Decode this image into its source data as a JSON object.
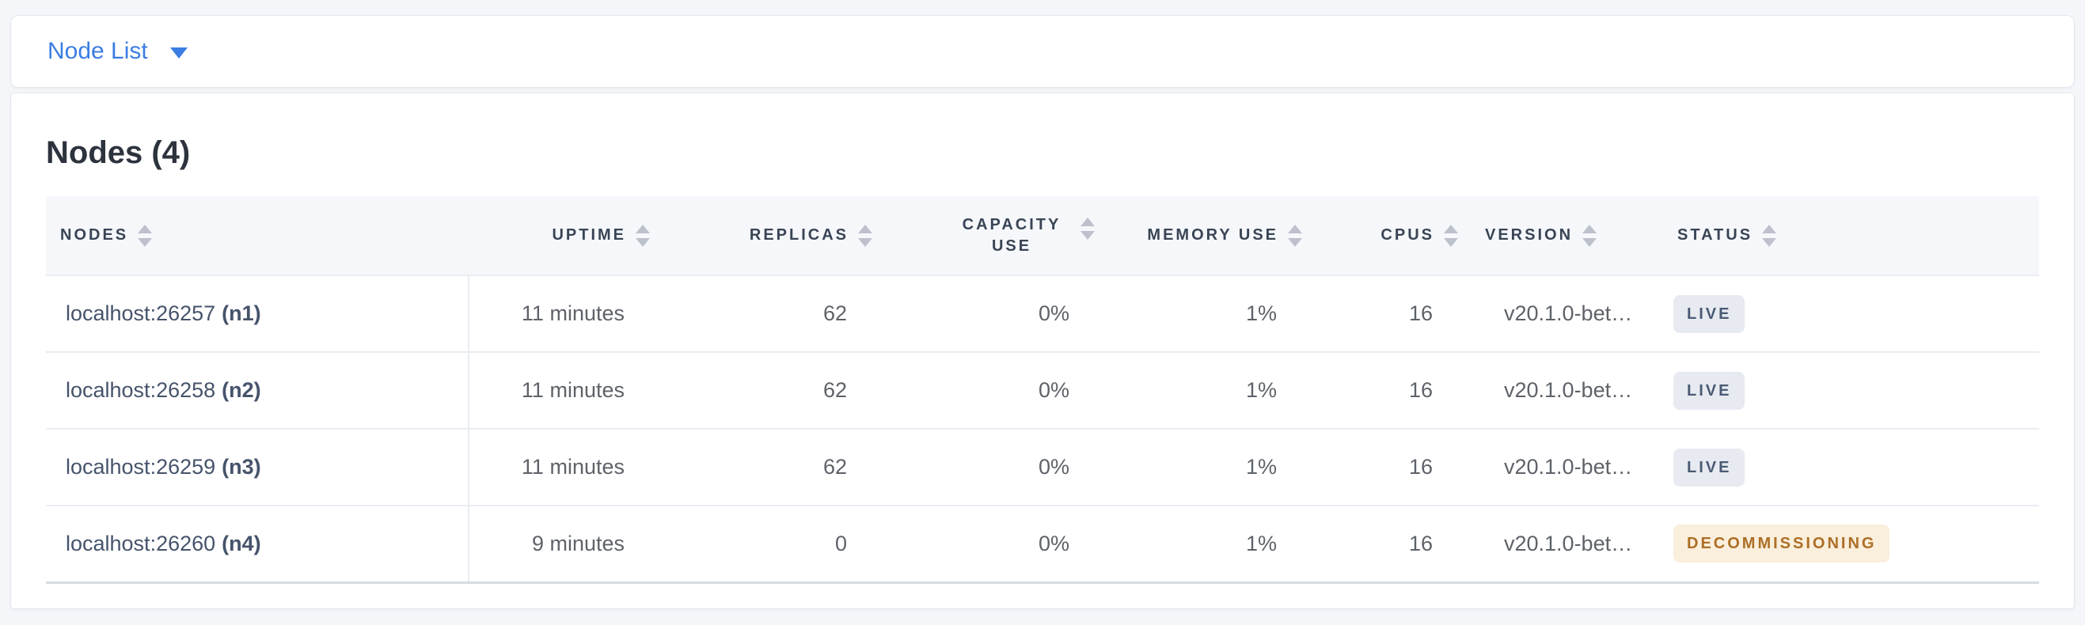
{
  "topbar": {
    "dropdown_label": "Node List"
  },
  "main": {
    "title": "Nodes (4)",
    "table": {
      "headers": {
        "nodes": "NODES",
        "uptime": "UPTIME",
        "replicas": "REPLICAS",
        "capacity_use": "CAPACITY USE",
        "memory_use": "MEMORY USE",
        "cpus": "CPUS",
        "version": "VERSION",
        "status": "STATUS"
      },
      "rows": [
        {
          "address": "localhost:26257",
          "id": "(n1)",
          "uptime": "11 minutes",
          "replicas": "62",
          "capacity_use": "0%",
          "memory_use": "1%",
          "cpus": "16",
          "version": "v20.1.0-bet…",
          "status": "LIVE"
        },
        {
          "address": "localhost:26258",
          "id": "(n2)",
          "uptime": "11 minutes",
          "replicas": "62",
          "capacity_use": "0%",
          "memory_use": "1%",
          "cpus": "16",
          "version": "v20.1.0-bet…",
          "status": "LIVE"
        },
        {
          "address": "localhost:26259",
          "id": "(n3)",
          "uptime": "11 minutes",
          "replicas": "62",
          "capacity_use": "0%",
          "memory_use": "1%",
          "cpus": "16",
          "version": "v20.1.0-bet…",
          "status": "LIVE"
        },
        {
          "address": "localhost:26260",
          "id": "(n4)",
          "uptime": "9 minutes",
          "replicas": "0",
          "capacity_use": "0%",
          "memory_use": "1%",
          "cpus": "16",
          "version": "v20.1.0-bet…",
          "status": "DECOMMISSIONING"
        }
      ]
    }
  },
  "colors": {
    "link_blue": "#3B7DE2",
    "header_text": "#394455",
    "cell_text": "#5E6269",
    "node_text": "#46536B",
    "live_badge_bg": "#E7EAF1",
    "live_badge_text": "#4A5A74",
    "decommissioning_badge_bg": "#FAEFDC",
    "decommissioning_badge_text": "#AD6E26"
  }
}
